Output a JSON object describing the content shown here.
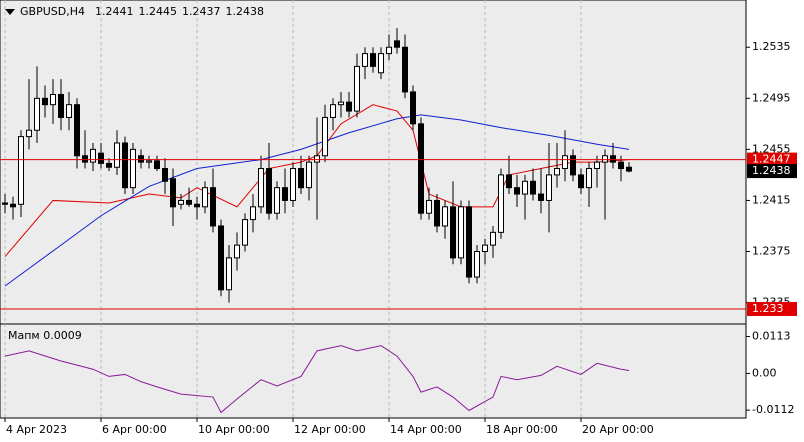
{
  "chart_data": {
    "type": "candlestick",
    "title": "GBPUSD,H4",
    "header_ohlc": [
      1.2441,
      1.2445,
      1.2437,
      1.2438
    ],
    "categories": [
      "4 Apr 2023",
      null,
      null,
      null,
      null,
      null,
      null,
      null,
      null,
      null,
      null,
      null,
      "6 Apr 00:00",
      null,
      null,
      null,
      null,
      null,
      null,
      null,
      null,
      null,
      null,
      null,
      "10 Apr 00:00",
      null,
      null,
      null,
      null,
      null,
      null,
      null,
      null,
      null,
      null,
      null,
      "12 Apr 00:00",
      null,
      null,
      null,
      null,
      null,
      null,
      null,
      null,
      null,
      null,
      null,
      "14 Apr 00:00",
      null,
      null,
      null,
      null,
      null,
      null,
      null,
      null,
      null,
      null,
      null,
      "18 Apr 00:00",
      null,
      null,
      null,
      null,
      null,
      null,
      null,
      null,
      null,
      null,
      null,
      "20 Apr 00:00",
      null,
      null,
      null,
      null,
      null,
      null
    ],
    "open": [
      1.2413,
      1.2412,
      1.2412,
      1.2465,
      1.247,
      1.2495,
      1.249,
      1.2498,
      1.248,
      1.249,
      1.245,
      1.2445,
      1.2452,
      1.2444,
      1.2441,
      1.246,
      1.2425,
      1.245,
      1.2445,
      1.2446,
      1.244,
      1.2432,
      1.2412,
      1.2415,
      1.2412,
      1.241,
      1.2425,
      1.2395,
      1.2345,
      1.237,
      1.238,
      1.24,
      1.241,
      1.244,
      1.2405,
      1.2425,
      1.2415,
      1.244,
      1.2425,
      1.2445,
      1.245,
      1.248,
      1.249,
      1.2492,
      1.2485,
      1.252,
      1.253,
      1.2515,
      1.253,
      1.254,
      1.2535,
      1.25,
      1.2475,
      1.2405,
      1.2415,
      1.2395,
      1.241,
      1.237,
      1.241,
      1.2355,
      1.2375,
      1.238,
      1.239,
      1.2435,
      1.2425,
      1.242,
      1.243,
      1.242,
      1.2415,
      1.2435,
      1.244,
      1.245,
      1.2435,
      1.2425,
      1.244,
      1.2445,
      1.245,
      1.2445,
      1.2441
    ],
    "high": [
      1.242,
      1.2418,
      1.247,
      1.251,
      1.252,
      1.2505,
      1.251,
      1.251,
      1.25,
      1.2495,
      1.247,
      1.246,
      1.246,
      1.2448,
      1.247,
      1.2465,
      1.246,
      1.2455,
      1.245,
      1.245,
      1.2448,
      1.244,
      1.242,
      1.2425,
      1.2418,
      1.243,
      1.244,
      1.24,
      1.238,
      1.239,
      1.2405,
      1.242,
      1.245,
      1.246,
      1.243,
      1.244,
      1.2445,
      1.245,
      1.245,
      1.248,
      1.249,
      1.2495,
      1.25,
      1.25,
      1.253,
      1.2535,
      1.2535,
      1.2535,
      1.2545,
      1.255,
      1.2545,
      1.2505,
      1.248,
      1.2425,
      1.242,
      1.2415,
      1.243,
      1.2415,
      1.2415,
      1.238,
      1.2385,
      1.2395,
      1.244,
      1.245,
      1.2435,
      1.2435,
      1.244,
      1.244,
      1.246,
      1.246,
      1.247,
      1.2455,
      1.244,
      1.2445,
      1.245,
      1.2455,
      1.246,
      1.245,
      1.2445
    ],
    "low": [
      1.2405,
      1.24,
      1.2402,
      1.2455,
      1.246,
      1.248,
      1.2475,
      1.247,
      1.247,
      1.244,
      1.244,
      1.2438,
      1.244,
      1.2438,
      1.2435,
      1.242,
      1.242,
      1.244,
      1.244,
      1.2438,
      1.242,
      1.2395,
      1.2408,
      1.241,
      1.24,
      1.2405,
      1.239,
      1.234,
      1.2335,
      1.236,
      1.2375,
      1.239,
      1.2405,
      1.24,
      1.24,
      1.2405,
      1.241,
      1.242,
      1.2415,
      1.24,
      1.2445,
      1.247,
      1.248,
      1.248,
      1.248,
      1.251,
      1.2515,
      1.251,
      1.2525,
      1.253,
      1.2495,
      1.247,
      1.24,
      1.24,
      1.239,
      1.2385,
      1.2365,
      1.2365,
      1.235,
      1.235,
      1.2365,
      1.237,
      1.2385,
      1.242,
      1.241,
      1.24,
      1.2415,
      1.2405,
      1.239,
      1.2425,
      1.243,
      1.243,
      1.242,
      1.241,
      1.2425,
      1.24,
      1.244,
      1.243,
      1.2437
    ],
    "close": [
      1.2412,
      1.241,
      1.2465,
      1.247,
      1.2495,
      1.249,
      1.2498,
      1.248,
      1.249,
      1.245,
      1.2445,
      1.2455,
      1.2444,
      1.2441,
      1.246,
      1.2425,
      1.2455,
      1.2445,
      1.2446,
      1.244,
      1.243,
      1.241,
      1.2415,
      1.2412,
      1.241,
      1.2425,
      1.2395,
      1.2345,
      1.237,
      1.238,
      1.24,
      1.241,
      1.244,
      1.2405,
      1.2425,
      1.2415,
      1.244,
      1.2425,
      1.2445,
      1.245,
      1.248,
      1.249,
      1.2492,
      1.2485,
      1.252,
      1.253,
      1.252,
      1.253,
      1.2535,
      1.2535,
      1.25,
      1.2475,
      1.2405,
      1.2415,
      1.2395,
      1.241,
      1.237,
      1.241,
      1.2355,
      1.2375,
      1.238,
      1.239,
      1.2435,
      1.2425,
      1.242,
      1.243,
      1.242,
      1.2415,
      1.2435,
      1.244,
      1.245,
      1.2435,
      1.2425,
      1.244,
      1.2445,
      1.245,
      1.2445,
      1.244,
      1.2438
    ],
    "ylim": [
      1.2319,
      1.2572
    ],
    "yticks": [
      1.2535,
      1.2495,
      1.2455,
      1.2415,
      1.2375,
      1.2335
    ],
    "levels": [
      {
        "value": 1.2447,
        "color": "#e00000"
      },
      {
        "value": 1.233,
        "color": "#e00000"
      }
    ],
    "last_price": 1.2438,
    "moving_averages": [
      {
        "color": "#e00000",
        "x": [
          0,
          6,
          13,
          18,
          22,
          24,
          29,
          33,
          37,
          39,
          42,
          46,
          49,
          51,
          53,
          57,
          61,
          63,
          67,
          71,
          74,
          78
        ],
        "values": [
          1.2371,
          1.2415,
          1.2413,
          1.242,
          1.2417,
          1.2425,
          1.241,
          1.244,
          1.2445,
          1.245,
          1.2475,
          1.249,
          1.2485,
          1.247,
          1.242,
          1.241,
          1.241,
          1.2435,
          1.244,
          1.2445,
          1.2445,
          1.2447
        ]
      },
      {
        "color": "#1020d0",
        "x": [
          0,
          7,
          12,
          18,
          24,
          32,
          37,
          43,
          49,
          52,
          57,
          62,
          68,
          74,
          78
        ],
        "values": [
          1.2348,
          1.238,
          1.2403,
          1.2426,
          1.244,
          1.2447,
          1.2455,
          1.2468,
          1.2479,
          1.2482,
          1.2478,
          1.2472,
          1.2466,
          1.2459,
          1.2455
        ]
      }
    ],
    "indicator": {
      "name": "Мапм",
      "value": 0.0009,
      "color": "#8a1a9a",
      "ylim": [
        -0.0136,
        0.0148
      ],
      "yticks": [
        0.0113,
        {
          "value": 0,
          "label": "0.00"
        },
        -0.0112
      ],
      "x": [
        0,
        3,
        7,
        11,
        13,
        15,
        17,
        19,
        22,
        26,
        27,
        29,
        32,
        34,
        37,
        39,
        42,
        44,
        47,
        49,
        51,
        52,
        54,
        56,
        58,
        61,
        62,
        64,
        67,
        69,
        72,
        74,
        77,
        78
      ],
      "values": [
        0.0053,
        0.0069,
        0.0038,
        0.0013,
        -0.0009,
        -0.0003,
        -0.0025,
        -0.0041,
        -0.0063,
        -0.0072,
        -0.0119,
        -0.0078,
        -0.0019,
        -0.0038,
        -0.0009,
        0.0069,
        0.0085,
        0.0069,
        0.0085,
        0.0053,
        -0.0009,
        -0.0057,
        -0.0041,
        -0.0072,
        -0.0113,
        -0.0072,
        -0.0009,
        -0.0019,
        -0.0006,
        0.0022,
        -0.0003,
        0.0031,
        0.0013,
        0.0009
      ]
    }
  }
}
